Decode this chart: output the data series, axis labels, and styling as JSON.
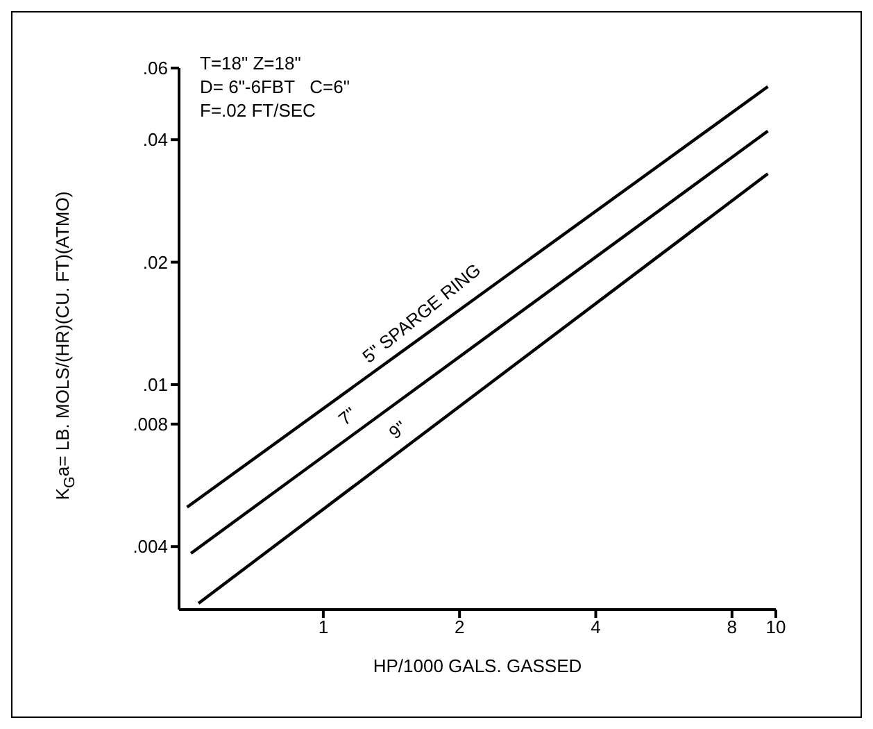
{
  "chart_data": {
    "type": "line",
    "xlabel": "HP/1000 GALS. GASSED",
    "ylabel": "K$_{G}$a= LB. MOLS/(HR)(CU. FT)(ATMO)",
    "log": "xy",
    "xlim": [
      0.48,
      10
    ],
    "ylim": [
      0.0028,
      0.06
    ],
    "xticks": [
      1,
      2,
      4,
      8,
      10
    ],
    "yticks": [
      {
        "value": 0.004,
        "label": ".004"
      },
      {
        "value": 0.008,
        "label": ".008"
      },
      {
        "value": 0.01,
        "label": ".01"
      },
      {
        "value": 0.02,
        "label": ".02"
      },
      {
        "value": 0.04,
        "label": ".04"
      },
      {
        "value": 0.06,
        "label": ".06"
      }
    ],
    "grid": false,
    "legend": false,
    "marker": "none",
    "line_style": "solid",
    "series": [
      {
        "color": "#000000",
        "x": [
          0.5,
          9.6
        ],
        "values": [
          0.005,
          0.054
        ]
      },
      {
        "color": "#000000",
        "x": [
          0.51,
          9.6
        ],
        "values": [
          0.00385,
          0.042
        ]
      },
      {
        "color": "#000000",
        "x": [
          0.53,
          9.6
        ],
        "values": [
          0.0029,
          0.033
        ]
      }
    ],
    "annotations": [
      "T=18\" Z=18\"",
      "D= 6\"-6FBT   C=6\"",
      "F=.02 FT/SEC",
      {
        "text": "5\"   SPARGE RING",
        "x": 1.75,
        "y": 0.0138
      },
      {
        "text": "7\"",
        "x": 1.2,
        "y": 0.0077
      },
      {
        "text": "9\"",
        "x": 1.55,
        "y": 0.00713
      }
    ]
  }
}
